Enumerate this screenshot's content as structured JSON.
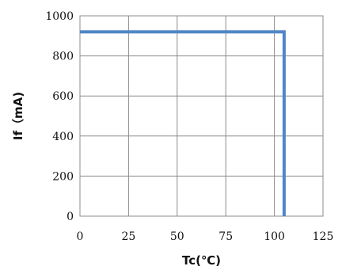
{
  "chart_data": {
    "type": "line",
    "title": "",
    "xlabel": "Tc(℃)",
    "ylabel": "If（mA)",
    "xlim": [
      0,
      125
    ],
    "ylim": [
      0,
      1000
    ],
    "x_ticks": [
      "0",
      "25",
      "50",
      "75",
      "100",
      "125"
    ],
    "y_ticks": [
      "0",
      "200",
      "400",
      "600",
      "800",
      "1000"
    ],
    "grid": true,
    "legend": "none",
    "series": [
      {
        "color": "#4f86c6",
        "points": [
          [
            0,
            920
          ],
          [
            105,
            920
          ],
          [
            105,
            0
          ]
        ]
      }
    ]
  }
}
